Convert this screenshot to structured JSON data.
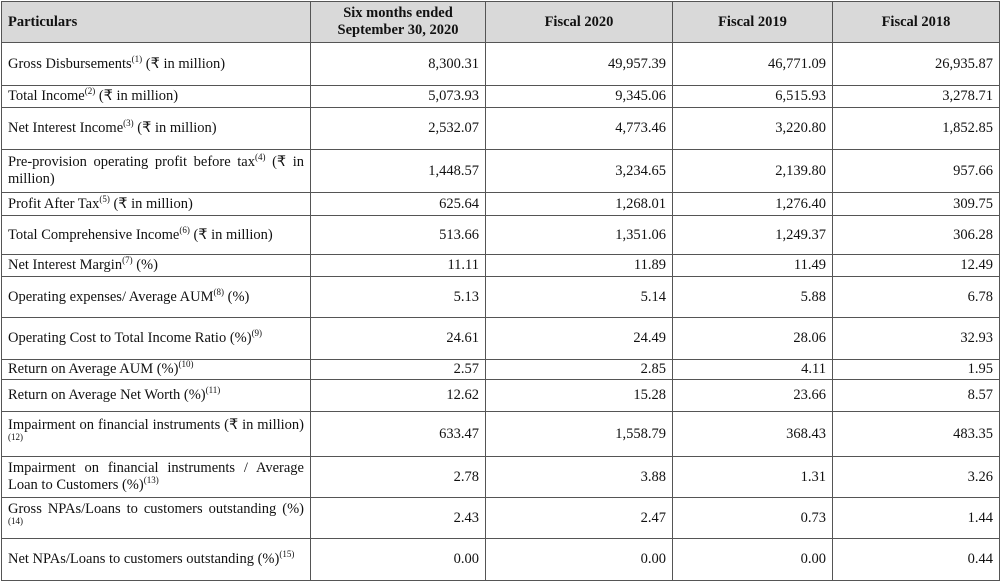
{
  "table": {
    "header": [
      "Particulars",
      "Six months ended September 30, 2020",
      "Fiscal 2020",
      "Fiscal 2019",
      "Fiscal 2018"
    ],
    "rows": [
      {
        "text": "Gross Disbursements",
        "sup": "(1)",
        "rest": "(₹ in million)",
        "values": [
          "8,300.31",
          "49,957.39",
          "46,771.09",
          "26,935.87"
        ]
      },
      {
        "text": "Total Income",
        "sup": "(2)",
        "rest": "(₹ in million)",
        "values": [
          "5,073.93",
          "9,345.06",
          "6,515.93",
          "3,278.71"
        ]
      },
      {
        "text": "Net Interest Income",
        "sup": "(3)",
        "rest": "(₹ in million)",
        "values": [
          "2,532.07",
          "4,773.46",
          "3,220.80",
          "1,852.85"
        ]
      },
      {
        "text": "Pre-provision operating profit before tax",
        "sup": "(4)",
        "rest": "(₹ in million)",
        "values": [
          "1,448.57",
          "3,234.65",
          "2,139.80",
          "957.66"
        ]
      },
      {
        "text": "Profit After Tax",
        "sup": "(5)",
        "rest": "(₹ in million)",
        "values": [
          "625.64",
          "1,268.01",
          "1,276.40",
          "309.75"
        ]
      },
      {
        "text": "Total Comprehensive Income",
        "sup": "(6)",
        "rest": "(₹ in million)",
        "values": [
          "513.66",
          "1,351.06",
          "1,249.37",
          "306.28"
        ]
      },
      {
        "text": "Net Interest Margin",
        "sup": "(7)",
        "rest": "(%)",
        "values": [
          "11.11",
          "11.89",
          "11.49",
          "12.49"
        ]
      },
      {
        "text": "Operating expenses/ Average AUM",
        "sup": "(8)",
        "rest": "(%)",
        "values": [
          "5.13",
          "5.14",
          "5.88",
          "6.78"
        ]
      },
      {
        "text": "Operating Cost to Total Income Ratio (%)",
        "sup": "(9)",
        "values": [
          "24.61",
          "24.49",
          "28.06",
          "32.93"
        ]
      },
      {
        "text": "Return on Average AUM (%)",
        "sup": "(10)",
        "values": [
          "2.57",
          "2.85",
          "4.11",
          "1.95"
        ]
      },
      {
        "text": "Return on Average Net Worth (%)",
        "sup": "(11)",
        "values": [
          "12.62",
          "15.28",
          "23.66",
          "8.57"
        ]
      },
      {
        "text": "Impairment on financial instruments (₹ in million)",
        "sup": "(12)",
        "values": [
          "633.47",
          "1,558.79",
          "368.43",
          "483.35"
        ]
      },
      {
        "text": "Impairment on financial instruments / Average Loan to Customers (%)",
        "sup": "(13)",
        "values": [
          "2.78",
          "3.88",
          "1.31",
          "3.26"
        ]
      },
      {
        "text": "Gross NPAs/Loans to customers outstanding (%)",
        "sup": "(14)",
        "values": [
          "2.43",
          "2.47",
          "0.73",
          "1.44"
        ]
      },
      {
        "text": "Net NPAs/Loans to customers outstanding (%)",
        "sup": "(15)",
        "values": [
          "0.00",
          "0.00",
          "0.00",
          "0.44"
        ]
      }
    ]
  }
}
